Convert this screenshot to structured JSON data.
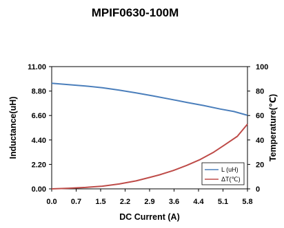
{
  "chart_data": {
    "type": "line",
    "title": "MPIF0630-100M",
    "xlabel": "DC Current (A)",
    "ylabel": "Inductance(uH)",
    "y2label": "Temperature(℃)",
    "x_ticks": [
      "0.0",
      "0.7",
      "1.5",
      "2.2",
      "2.9",
      "3.6",
      "4.4",
      "5.1",
      "5.8"
    ],
    "y_ticks": [
      "0.00",
      "2.20",
      "4.40",
      "6.60",
      "8.80",
      "11.00"
    ],
    "y2_ticks": [
      "0",
      "20",
      "40",
      "60",
      "80",
      "100"
    ],
    "xlim": [
      0,
      5.8
    ],
    "ylim": [
      0,
      11
    ],
    "y2lim": [
      0,
      100
    ],
    "grid": false,
    "legend_position": "bottom-right",
    "series": [
      {
        "name": "L (uH)",
        "axis": "left",
        "color": "#4a7ebb",
        "x": [
          0,
          0.5,
          1.0,
          1.5,
          2.0,
          2.5,
          3.0,
          3.5,
          4.0,
          4.5,
          5.0,
          5.4,
          5.8
        ],
        "y": [
          9.5,
          9.38,
          9.26,
          9.1,
          8.88,
          8.64,
          8.37,
          8.08,
          7.78,
          7.5,
          7.18,
          6.96,
          6.62
        ]
      },
      {
        "name": "ΔT(℃)",
        "axis": "right",
        "color": "#be4b48",
        "x": [
          0,
          0.5,
          1.0,
          1.5,
          2.0,
          2.5,
          2.9,
          3.2,
          3.6,
          4.0,
          4.4,
          4.8,
          5.1,
          5.5,
          5.8
        ],
        "y": [
          0,
          0.5,
          1.2,
          2.2,
          4.0,
          6.5,
          9.3,
          11.5,
          15.0,
          19.2,
          24.0,
          30.0,
          35.5,
          43.0,
          53.0
        ]
      }
    ]
  }
}
